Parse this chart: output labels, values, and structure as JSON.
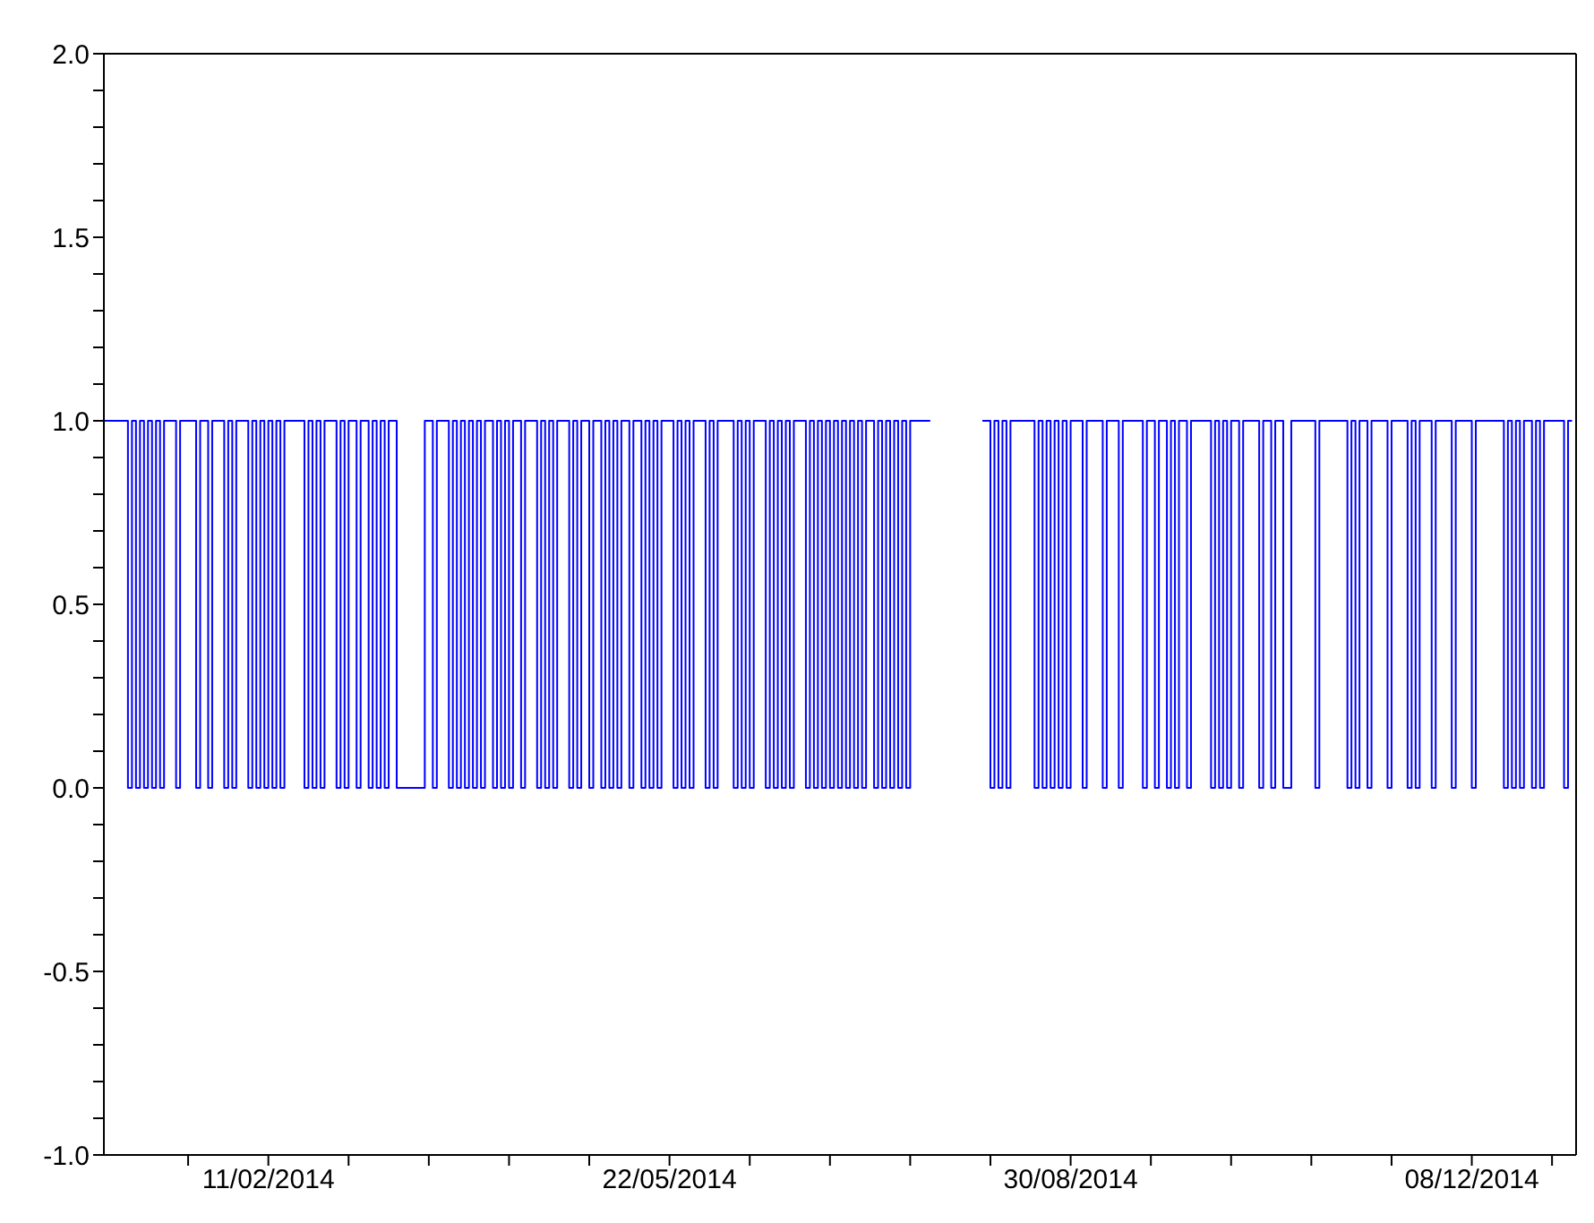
{
  "chart_data": {
    "type": "step",
    "x": [
      "2014-01-01",
      "2014-01-07",
      "2014-01-08",
      "2014-01-09",
      "2014-01-10",
      "2014-01-11",
      "2014-01-12",
      "2014-01-13",
      "2014-01-14",
      "2014-01-15",
      "2014-01-16",
      "2014-01-19",
      "2014-01-20",
      "2014-01-24",
      "2014-01-25",
      "2014-01-27",
      "2014-01-28",
      "2014-01-31",
      "2014-02-01",
      "2014-02-02",
      "2014-02-03",
      "2014-02-06",
      "2014-02-07",
      "2014-02-08",
      "2014-02-09",
      "2014-02-10",
      "2014-02-11",
      "2014-02-12",
      "2014-02-13",
      "2014-02-14",
      "2014-02-15",
      "2014-02-20",
      "2014-02-21",
      "2014-02-22",
      "2014-02-23",
      "2014-02-24",
      "2014-02-25",
      "2014-02-28",
      "2014-03-01",
      "2014-03-02",
      "2014-03-03",
      "2014-03-05",
      "2014-03-06",
      "2014-03-08",
      "2014-03-09",
      "2014-03-10",
      "2014-03-11",
      "2014-03-12",
      "2014-03-13",
      "2014-03-15",
      "2014-03-22",
      "2014-03-24",
      "2014-03-25",
      "2014-03-28",
      "2014-03-29",
      "2014-03-30",
      "2014-03-31",
      "2014-04-01",
      "2014-04-02",
      "2014-04-03",
      "2014-04-04",
      "2014-04-05",
      "2014-04-06",
      "2014-04-08",
      "2014-04-09",
      "2014-04-10",
      "2014-04-11",
      "2014-04-12",
      "2014-04-13",
      "2014-04-15",
      "2014-04-16",
      "2014-04-19",
      "2014-04-20",
      "2014-04-21",
      "2014-04-22",
      "2014-04-23",
      "2014-04-24",
      "2014-04-27",
      "2014-04-28",
      "2014-04-29",
      "2014-04-30",
      "2014-05-02",
      "2014-05-03",
      "2014-05-05",
      "2014-05-06",
      "2014-05-07",
      "2014-05-08",
      "2014-05-09",
      "2014-05-10",
      "2014-05-12",
      "2014-05-13",
      "2014-05-15",
      "2014-05-16",
      "2014-05-17",
      "2014-05-18",
      "2014-05-19",
      "2014-05-20",
      "2014-05-23",
      "2014-05-24",
      "2014-05-25",
      "2014-05-26",
      "2014-05-27",
      "2014-05-28",
      "2014-05-31",
      "2014-06-01",
      "2014-06-02",
      "2014-06-03",
      "2014-06-07",
      "2014-06-08",
      "2014-06-09",
      "2014-06-10",
      "2014-06-11",
      "2014-06-12",
      "2014-06-15",
      "2014-06-16",
      "2014-06-17",
      "2014-06-18",
      "2014-06-19",
      "2014-06-20",
      "2014-06-21",
      "2014-06-22",
      "2014-06-25",
      "2014-06-26",
      "2014-06-27",
      "2014-06-28",
      "2014-06-29",
      "2014-06-30",
      "2014-07-01",
      "2014-07-02",
      "2014-07-03",
      "2014-07-04",
      "2014-07-05",
      "2014-07-06",
      "2014-07-07",
      "2014-07-08",
      "2014-07-09",
      "2014-07-10",
      "2014-07-12",
      "2014-07-13",
      "2014-07-14",
      "2014-07-15",
      "2014-07-16",
      "2014-07-17",
      "2014-07-18",
      "2014-07-19",
      "2014-07-20",
      "2014-07-21",
      "2014-07-26",
      "2014-07-27",
      "2014-08-08",
      "2014-08-10",
      "2014-08-11",
      "2014-08-12",
      "2014-08-13",
      "2014-08-14",
      "2014-08-15",
      "2014-08-21",
      "2014-08-22",
      "2014-08-23",
      "2014-08-24",
      "2014-08-25",
      "2014-08-26",
      "2014-08-27",
      "2014-08-28",
      "2014-08-29",
      "2014-08-30",
      "2014-09-02",
      "2014-09-03",
      "2014-09-07",
      "2014-09-08",
      "2014-09-11",
      "2014-09-12",
      "2014-09-17",
      "2014-09-18",
      "2014-09-20",
      "2014-09-21",
      "2014-09-23",
      "2014-09-24",
      "2014-09-25",
      "2014-09-26",
      "2014-09-28",
      "2014-09-29",
      "2014-10-04",
      "2014-10-05",
      "2014-10-06",
      "2014-10-07",
      "2014-10-08",
      "2014-10-09",
      "2014-10-11",
      "2014-10-12",
      "2014-10-16",
      "2014-10-17",
      "2014-10-19",
      "2014-10-20",
      "2014-10-22",
      "2014-10-24",
      "2014-10-30",
      "2014-10-31",
      "2014-11-07",
      "2014-11-08",
      "2014-11-09",
      "2014-11-10",
      "2014-11-12",
      "2014-11-13",
      "2014-11-17",
      "2014-11-18",
      "2014-11-22",
      "2014-11-23",
      "2014-11-24",
      "2014-11-25",
      "2014-11-28",
      "2014-11-29",
      "2014-12-03",
      "2014-12-04",
      "2014-12-08",
      "2014-12-09",
      "2014-12-16",
      "2014-12-17",
      "2014-12-18",
      "2014-12-19",
      "2014-12-20",
      "2014-12-21",
      "2014-12-23",
      "2014-12-24",
      "2014-12-25",
      "2014-12-26",
      "2014-12-31",
      "2015-01-01",
      "2015-01-02"
    ],
    "series": [
      {
        "color": "#0000ff",
        "values": [
          1,
          0,
          1,
          0,
          1,
          0,
          1,
          0,
          1,
          0,
          1,
          0,
          1,
          0,
          1,
          0,
          1,
          0,
          1,
          0,
          1,
          0,
          1,
          0,
          1,
          0,
          1,
          0,
          1,
          0,
          1,
          0,
          1,
          0,
          1,
          0,
          1,
          0,
          1,
          0,
          1,
          0,
          1,
          0,
          1,
          0,
          1,
          0,
          1,
          0,
          1,
          0,
          1,
          0,
          1,
          0,
          1,
          0,
          1,
          0,
          1,
          0,
          1,
          0,
          1,
          0,
          1,
          0,
          1,
          0,
          1,
          0,
          1,
          0,
          1,
          0,
          1,
          0,
          1,
          0,
          1,
          0,
          1,
          0,
          1,
          0,
          1,
          0,
          1,
          0,
          1,
          0,
          1,
          0,
          1,
          0,
          1,
          0,
          1,
          0,
          1,
          0,
          1,
          0,
          1,
          0,
          1,
          0,
          1,
          0,
          1,
          0,
          1,
          0,
          1,
          0,
          1,
          0,
          1,
          0,
          1,
          0,
          1,
          0,
          1,
          0,
          1,
          0,
          1,
          0,
          1,
          0,
          1,
          0,
          1,
          0,
          1,
          0,
          1,
          0,
          1,
          0,
          1,
          0,
          1,
          0,
          1,
          1,
          null,
          1,
          0,
          1,
          0,
          1,
          0,
          1,
          0,
          1,
          0,
          1,
          0,
          1,
          0,
          1,
          0,
          1,
          0,
          1,
          0,
          1,
          0,
          1,
          0,
          1,
          0,
          1,
          0,
          1,
          0,
          1,
          0,
          1,
          0,
          1,
          0,
          1,
          0,
          1,
          0,
          1,
          0,
          1,
          0,
          1,
          0,
          1,
          0,
          1,
          0,
          1,
          0,
          1,
          0,
          1,
          0,
          1,
          0,
          1,
          0,
          1,
          0,
          1,
          0,
          1,
          0,
          1,
          0,
          1,
          0,
          1,
          0,
          1,
          0,
          1,
          0,
          1,
          0,
          1,
          1
        ]
      }
    ],
    "xlim": [
      "2014-01-01",
      "2015-01-03"
    ],
    "xticks": [
      {
        "value": "2014-01-22",
        "label": null
      },
      {
        "value": "2014-02-11",
        "label": "11/02/2014"
      },
      {
        "value": "2014-03-03",
        "label": null
      },
      {
        "value": "2014-03-23",
        "label": null
      },
      {
        "value": "2014-04-12",
        "label": null
      },
      {
        "value": "2014-05-02",
        "label": null
      },
      {
        "value": "2014-05-22",
        "label": "22/05/2014"
      },
      {
        "value": "2014-06-11",
        "label": null
      },
      {
        "value": "2014-07-01",
        "label": null
      },
      {
        "value": "2014-07-21",
        "label": null
      },
      {
        "value": "2014-08-10",
        "label": null
      },
      {
        "value": "2014-08-30",
        "label": "30/08/2014"
      },
      {
        "value": "2014-09-19",
        "label": null
      },
      {
        "value": "2014-10-09",
        "label": null
      },
      {
        "value": "2014-10-29",
        "label": null
      },
      {
        "value": "2014-11-18",
        "label": null
      },
      {
        "value": "2014-12-08",
        "label": "08/12/2014"
      },
      {
        "value": "2014-12-28",
        "label": null
      }
    ],
    "ylim": [
      -1,
      2
    ],
    "yticks": [
      {
        "value": -1,
        "label": "-1.0"
      },
      {
        "value": -0.9,
        "label": null
      },
      {
        "value": -0.8,
        "label": null
      },
      {
        "value": -0.7,
        "label": null
      },
      {
        "value": -0.6,
        "label": null
      },
      {
        "value": -0.5,
        "label": "-0.5"
      },
      {
        "value": -0.4,
        "label": null
      },
      {
        "value": -0.3,
        "label": null
      },
      {
        "value": -0.2,
        "label": null
      },
      {
        "value": -0.1,
        "label": null
      },
      {
        "value": 0,
        "label": "0.0"
      },
      {
        "value": 0.1,
        "label": null
      },
      {
        "value": 0.2,
        "label": null
      },
      {
        "value": 0.3,
        "label": null
      },
      {
        "value": 0.4,
        "label": null
      },
      {
        "value": 0.5,
        "label": "0.5"
      },
      {
        "value": 0.6,
        "label": null
      },
      {
        "value": 0.7,
        "label": null
      },
      {
        "value": 0.8,
        "label": null
      },
      {
        "value": 0.9,
        "label": null
      },
      {
        "value": 1,
        "label": "1.0"
      },
      {
        "value": 1.1,
        "label": null
      },
      {
        "value": 1.2,
        "label": null
      },
      {
        "value": 1.3,
        "label": null
      },
      {
        "value": 1.4,
        "label": null
      },
      {
        "value": 1.5,
        "label": "1.5"
      },
      {
        "value": 1.6,
        "label": null
      },
      {
        "value": 1.7,
        "label": null
      },
      {
        "value": 1.8,
        "label": null
      },
      {
        "value": 1.9,
        "label": null
      },
      {
        "value": 2,
        "label": "2.0"
      }
    ]
  }
}
